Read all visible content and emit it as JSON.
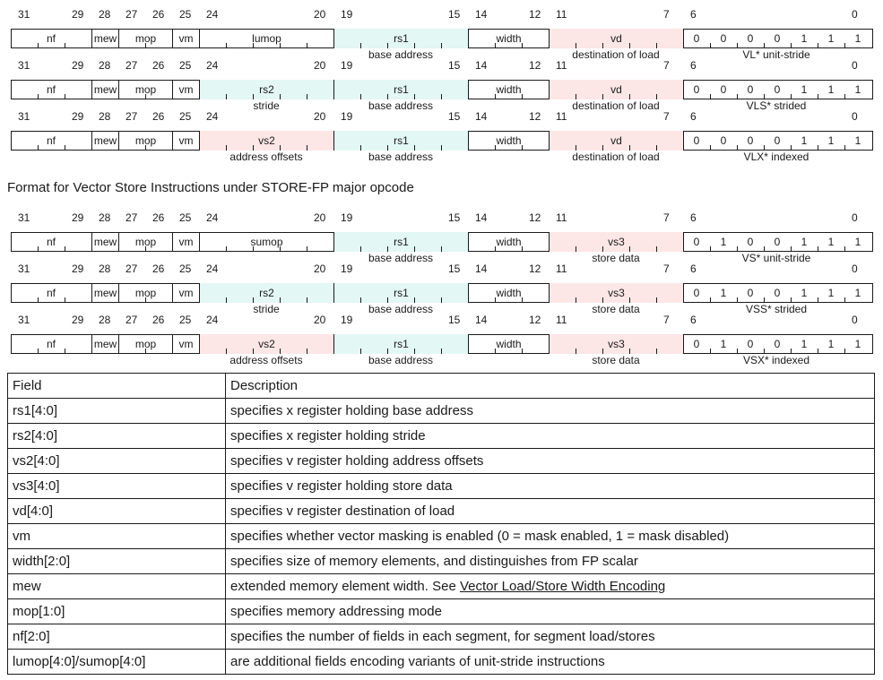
{
  "bit_positions": [
    "31",
    "29",
    "28",
    "27",
    "26",
    "25",
    "24",
    "20",
    "19",
    "15",
    "14",
    "12",
    "11",
    "7",
    "6",
    "0"
  ],
  "heading": "Format for Vector Store Instructions under STORE-FP major opcode",
  "colors": {
    "cyan": "#e3f7f5",
    "pink": "#fde6e6",
    "border": "#1a1a1a"
  },
  "encodings": [
    {
      "fields": {
        "nf": "nf",
        "mew": "mew",
        "mop": "mop",
        "vm": "vm",
        "f24": "lumop",
        "rs1": "rs1",
        "width": "width",
        "f11": "vd"
      },
      "f24_color": "none",
      "f11_color": "pink",
      "opcode": [
        "0",
        "0",
        "0",
        "0",
        "1",
        "1",
        "1"
      ],
      "labels": {
        "f24": "",
        "rs1": "base address",
        "f11": "destination of load",
        "op": "VL* unit-stride"
      }
    },
    {
      "fields": {
        "nf": "nf",
        "mew": "mew",
        "mop": "mop",
        "vm": "vm",
        "f24": "rs2",
        "rs1": "rs1",
        "width": "width",
        "f11": "vd"
      },
      "f24_color": "cyan",
      "f11_color": "pink",
      "opcode": [
        "0",
        "0",
        "0",
        "0",
        "1",
        "1",
        "1"
      ],
      "labels": {
        "f24": "stride",
        "rs1": "base address",
        "f11": "destination of load",
        "op": "VLS* strided"
      }
    },
    {
      "fields": {
        "nf": "nf",
        "mew": "mew",
        "mop": "mop",
        "vm": "vm",
        "f24": "vs2",
        "rs1": "rs1",
        "width": "width",
        "f11": "vd"
      },
      "f24_color": "pink",
      "f11_color": "pink",
      "opcode": [
        "0",
        "0",
        "0",
        "0",
        "1",
        "1",
        "1"
      ],
      "labels": {
        "f24": "address offsets",
        "rs1": "base address",
        "f11": "destination of load",
        "op": "VLX* indexed"
      }
    },
    {
      "fields": {
        "nf": "nf",
        "mew": "mew",
        "mop": "mop",
        "vm": "vm",
        "f24": "sumop",
        "rs1": "rs1",
        "width": "width",
        "f11": "vs3"
      },
      "f24_color": "none",
      "f11_color": "pink",
      "opcode": [
        "0",
        "1",
        "0",
        "0",
        "1",
        "1",
        "1"
      ],
      "labels": {
        "f24": "",
        "rs1": "base address",
        "f11": "store data",
        "op": "VS* unit-stride"
      }
    },
    {
      "fields": {
        "nf": "nf",
        "mew": "mew",
        "mop": "mop",
        "vm": "vm",
        "f24": "rs2",
        "rs1": "rs1",
        "width": "width",
        "f11": "vs3"
      },
      "f24_color": "cyan",
      "f11_color": "pink",
      "opcode": [
        "0",
        "1",
        "0",
        "0",
        "1",
        "1",
        "1"
      ],
      "labels": {
        "f24": "stride",
        "rs1": "base address",
        "f11": "store data",
        "op": "VSS* strided"
      }
    },
    {
      "fields": {
        "nf": "nf",
        "mew": "mew",
        "mop": "mop",
        "vm": "vm",
        "f24": "vs2",
        "rs1": "rs1",
        "width": "width",
        "f11": "vs3"
      },
      "f24_color": "pink",
      "f11_color": "pink",
      "opcode": [
        "0",
        "1",
        "0",
        "0",
        "1",
        "1",
        "1"
      ],
      "labels": {
        "f24": "address offsets",
        "rs1": "base address",
        "f11": "store data",
        "op": "VSX* indexed"
      }
    }
  ],
  "table": {
    "headers": [
      "Field",
      "Description"
    ],
    "rows": [
      [
        "rs1[4:0]",
        "specifies x register holding base address"
      ],
      [
        "rs2[4:0]",
        "specifies x register holding stride"
      ],
      [
        "vs2[4:0]",
        "specifies v register holding address offsets"
      ],
      [
        "vs3[4:0]",
        "specifies v register holding store data"
      ],
      [
        "vd[4:0]",
        "specifies v register destination of load"
      ],
      [
        "vm",
        "specifies whether vector masking is enabled (0 = mask enabled, 1 = mask disabled)"
      ],
      [
        "width[2:0]",
        "specifies size of memory elements, and distinguishes from FP scalar"
      ],
      [
        "mew",
        "extended memory element width. See "
      ],
      [
        "mop[1:0]",
        "specifies memory addressing mode"
      ],
      [
        "nf[2:0]",
        "specifies the number of fields in each segment, for segment load/stores"
      ],
      [
        "lumop[4:0]/sumop[4:0]",
        "are additional fields encoding variants of unit-stride instructions"
      ]
    ],
    "mew_link": "Vector Load/Store Width Encoding"
  }
}
